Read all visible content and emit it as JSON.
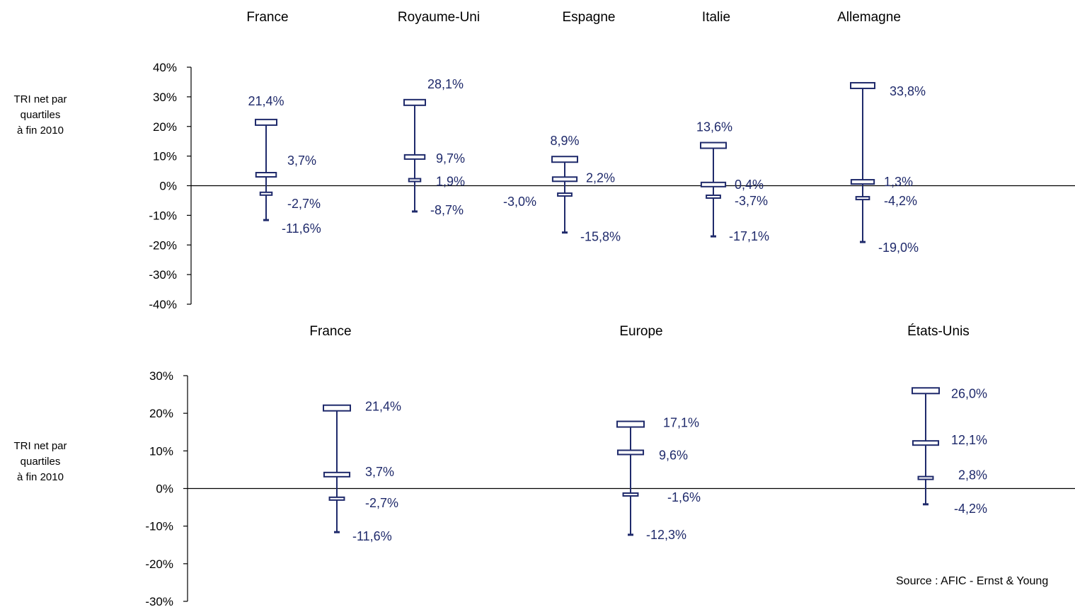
{
  "colors": {
    "series": "#1f2a6b",
    "axis": "#000000",
    "box_fill": "#ffffff"
  },
  "source": "Source : AFIC - Ernst & Young",
  "chart_data": [
    {
      "type": "box",
      "ylabel": "TRI net par\nquartiles\nà fin 2010",
      "ylim": [
        -40,
        40
      ],
      "yticks": [
        "-40%",
        "-30%",
        "-20%",
        "-10%",
        "0%",
        "10%",
        "20%",
        "30%",
        "40%"
      ],
      "categories": [
        "France",
        "Royaume-Uni",
        "Espagne",
        "Italie",
        "Allemagne"
      ],
      "series": [
        {
          "values": [
            21.4,
            3.7,
            -2.7,
            -11.6
          ],
          "labels": [
            "21,4%",
            "3,7%",
            "-2,7%",
            "-11,6%"
          ]
        },
        {
          "values": [
            28.1,
            9.7,
            1.9,
            -8.7
          ],
          "labels": [
            "28,1%",
            "9,7%",
            "1,9%",
            "-8,7%"
          ]
        },
        {
          "values": [
            8.9,
            2.2,
            -3.0,
            -15.8
          ],
          "labels": [
            "8,9%",
            "2,2%",
            "-3,0%",
            "-15,8%"
          ]
        },
        {
          "values": [
            13.6,
            0.4,
            -3.7,
            -17.1
          ],
          "labels": [
            "13,6%",
            "0,4%",
            "-3,7%",
            "-17,1%"
          ]
        },
        {
          "values": [
            33.8,
            1.3,
            -4.2,
            -19.0
          ],
          "labels": [
            "33,8%",
            "1,3%",
            "-4,2%",
            "-19,0%"
          ]
        }
      ]
    },
    {
      "type": "box",
      "ylabel": "TRI net par\nquartiles\nà fin 2010",
      "ylim": [
        -30,
        30
      ],
      "yticks": [
        "-30%",
        "-20%",
        "-10%",
        "0%",
        "10%",
        "20%",
        "30%"
      ],
      "categories": [
        "France",
        "Europe",
        "États-Unis"
      ],
      "series": [
        {
          "values": [
            21.4,
            3.7,
            -2.7,
            -11.6
          ],
          "labels": [
            "21,4%",
            "3,7%",
            "-2,7%",
            "-11,6%"
          ]
        },
        {
          "values": [
            17.1,
            9.6,
            -1.6,
            -12.3
          ],
          "labels": [
            "17,1%",
            "9,6%",
            "-1,6%",
            "-12,3%"
          ]
        },
        {
          "values": [
            26.0,
            12.1,
            2.8,
            -4.2
          ],
          "labels": [
            "26,0%",
            "12,1%",
            "2,8%",
            "-4,2%"
          ]
        }
      ]
    }
  ]
}
